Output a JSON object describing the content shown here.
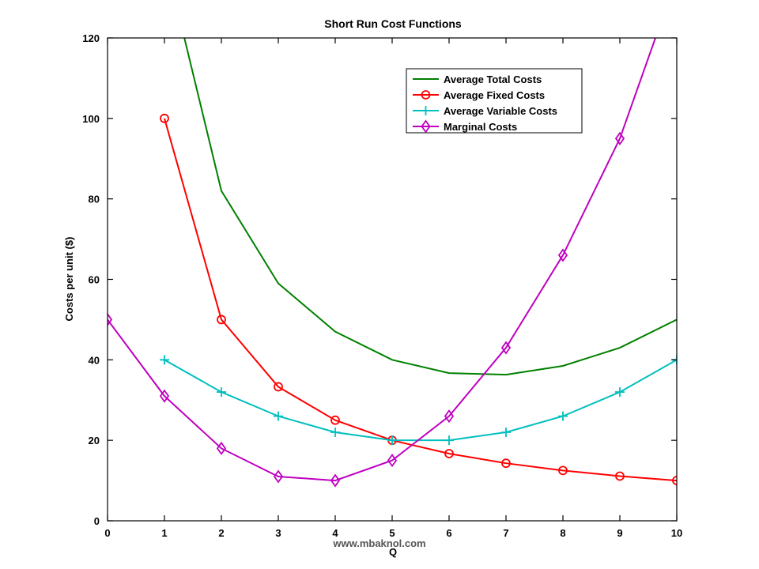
{
  "chart_data": {
    "type": "line",
    "title": "Short Run Cost Functions",
    "xlabel": "Q",
    "ylabel": "Costs per unit ($)",
    "xlim": [
      0,
      10
    ],
    "ylim": [
      0,
      120
    ],
    "xticks": [
      0,
      1,
      2,
      3,
      4,
      5,
      6,
      7,
      8,
      9,
      10
    ],
    "yticks": [
      0,
      20,
      40,
      60,
      80,
      100,
      120
    ],
    "grid": false,
    "legend_position": "top-right",
    "series": [
      {
        "name": "Average Total Costs",
        "color": "#008000",
        "marker": "none",
        "x": [
          1.35,
          2,
          3,
          4,
          5,
          6,
          7,
          8,
          9,
          10
        ],
        "y": [
          120,
          82,
          59,
          47,
          40,
          36.7,
          36.3,
          38.5,
          43,
          50
        ]
      },
      {
        "name": "Average Fixed Costs",
        "color": "#ff0000",
        "marker": "circle",
        "x": [
          1,
          2,
          3,
          4,
          5,
          6,
          7,
          8,
          9,
          10
        ],
        "y": [
          100,
          50,
          33.3,
          25,
          20,
          16.7,
          14.3,
          12.5,
          11.1,
          10
        ]
      },
      {
        "name": "Average Variable Costs",
        "color": "#00bfbf",
        "marker": "plus",
        "x": [
          1,
          2,
          3,
          4,
          5,
          6,
          7,
          8,
          9,
          10
        ],
        "y": [
          40,
          32,
          26,
          22,
          20,
          20,
          22,
          26,
          32,
          40
        ]
      },
      {
        "name": "Marginal Costs",
        "color": "#bf00bf",
        "marker": "diamond",
        "x": [
          0,
          1,
          2,
          3,
          4,
          5,
          6,
          7,
          8,
          9,
          10
        ],
        "y": [
          50,
          31,
          18,
          11,
          10,
          15,
          26,
          43,
          66,
          95,
          135
        ]
      }
    ]
  },
  "watermark": "www.mbaknol.com"
}
